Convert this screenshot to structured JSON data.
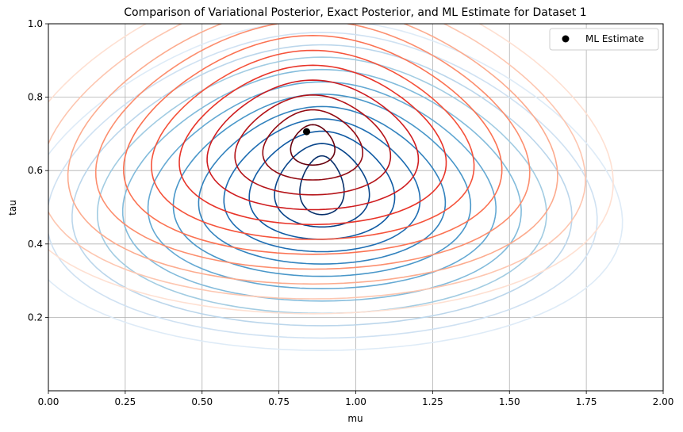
{
  "chart_data": {
    "type": "contour",
    "title": "Comparison of Variational Posterior, Exact Posterior, and ML Estimate for Dataset 1",
    "xlabel": "mu",
    "ylabel": "tau",
    "xlim": [
      0,
      2
    ],
    "ylim": [
      0,
      1
    ],
    "x_ticks": [
      "0.00",
      "0.25",
      "0.50",
      "0.75",
      "1.00",
      "1.25",
      "1.50",
      "1.75",
      "2.00"
    ],
    "y_ticks": [
      "0.2",
      "0.4",
      "0.6",
      "0.8",
      "1.0"
    ],
    "grid": true,
    "legend": {
      "position": "top-right",
      "entries": [
        {
          "label": "ML Estimate",
          "marker": "circle",
          "color": "#000000"
        }
      ]
    },
    "series": [
      {
        "colormap": "Blues",
        "center": {
          "x": 0.89,
          "y": 0.56
        },
        "levels": 12,
        "innermost_semiaxes": {
          "x": 0.07,
          "y": 0.08
        },
        "outermost_semiaxes": {
          "x": 0.95,
          "y": 0.45
        },
        "colors": [
          "#08306b",
          "#08519c",
          "#2171b5",
          "#4292c6",
          "#6baed6",
          "#9ecae1",
          "#c6dbef",
          "#deebf7"
        ]
      },
      {
        "colormap": "Reds",
        "center": {
          "x": 0.86,
          "y": 0.67
        },
        "levels": 11,
        "innermost_semiaxes": {
          "x": 0.07,
          "y": 0.055
        },
        "outermost_semiaxes": {
          "x": 0.95,
          "y": 0.46
        },
        "colors": [
          "#67000d",
          "#a50f15",
          "#cb181d",
          "#ef3b2c",
          "#fb6a4a",
          "#fc9272",
          "#fcbba1",
          "#fee0d2"
        ]
      },
      {
        "name": "ML Estimate",
        "type": "scatter",
        "points": [
          {
            "x": 0.84,
            "y": 0.706
          }
        ],
        "color": "#000000"
      }
    ]
  }
}
